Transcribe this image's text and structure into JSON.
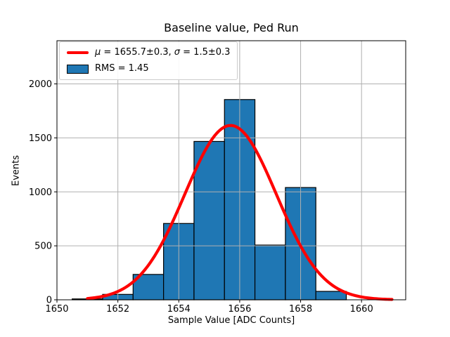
{
  "figure": {
    "title": "Baseline value, Ped Run",
    "xlabel": "Sample Value [ADC Counts]",
    "ylabel": "Events"
  },
  "legend": {
    "fit_entry": {
      "mu_symbol": "μ",
      "mu_text": " = 1655.7±0.3, ",
      "sigma_symbol": "σ",
      "sigma_text": " = 1.5±0.3"
    },
    "rms_entry": {
      "label": "RMS = 1.45"
    }
  },
  "chart_data": {
    "type": "bar",
    "subtype": "histogram-with-gaussian-fit",
    "title": "Baseline value, Ped Run",
    "xlabel": "Sample Value [ADC Counts]",
    "ylabel": "Events",
    "bin_centers": [
      1651,
      1652,
      1653,
      1654,
      1655,
      1656,
      1657,
      1658,
      1659
    ],
    "bin_width": 1,
    "values": [
      8,
      50,
      235,
      707,
      1467,
      1855,
      507,
      1040,
      78
    ],
    "bar_color": "#1f77b4",
    "bar_edge_color": "#000000",
    "fit": {
      "type": "gaussian",
      "mu": 1655.7,
      "sigma": 1.5,
      "amplitude": 1615,
      "x_start": 1651,
      "x_end": 1661,
      "color": "#ff0000",
      "linewidth": 4.2
    },
    "x_ticks": [
      1650,
      1652,
      1654,
      1656,
      1658,
      1660
    ],
    "y_ticks": [
      0,
      500,
      1000,
      1500,
      2000
    ],
    "xlim": [
      1650,
      1661.45
    ],
    "ylim": [
      0,
      2400
    ],
    "grid": true,
    "grid_color": "#b0b0b0",
    "grid_above_bars": true,
    "background_color": "#ffffff",
    "legend_position": "upper left",
    "legend": [
      "μ = 1655.7±0.3, σ = 1.5±0.3",
      "RMS = 1.45"
    ]
  }
}
